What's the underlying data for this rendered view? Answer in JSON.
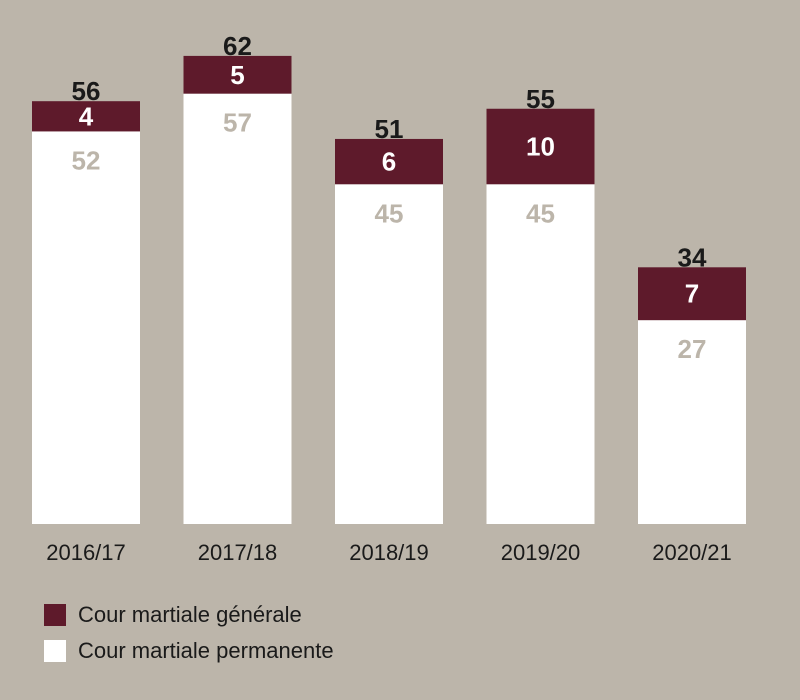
{
  "colors": {
    "background": "#bcb5aa",
    "general": "#5e1a2b",
    "permanent": "#ffffff",
    "permanent_label": "#bcb5aa",
    "total_label": "#1a1a1a"
  },
  "chart_data": {
    "type": "bar",
    "stacked": true,
    "title": "",
    "xlabel": "",
    "ylabel": "",
    "ylim": [
      0,
      62
    ],
    "categories": [
      "2016/17",
      "2017/18",
      "2018/19",
      "2019/20",
      "2020/21"
    ],
    "series": [
      {
        "name": "Cour martiale permanente",
        "values": [
          52,
          57,
          45,
          45,
          27
        ]
      },
      {
        "name": "Cour martiale générale",
        "values": [
          4,
          5,
          6,
          10,
          7
        ]
      }
    ],
    "totals": [
      56,
      62,
      51,
      55,
      34
    ],
    "legend_position": "bottom-left"
  },
  "legend": {
    "items": [
      {
        "label": "Cour martiale générale",
        "color": "#5e1a2b"
      },
      {
        "label": "Cour martiale permanente",
        "color": "#ffffff"
      }
    ]
  }
}
